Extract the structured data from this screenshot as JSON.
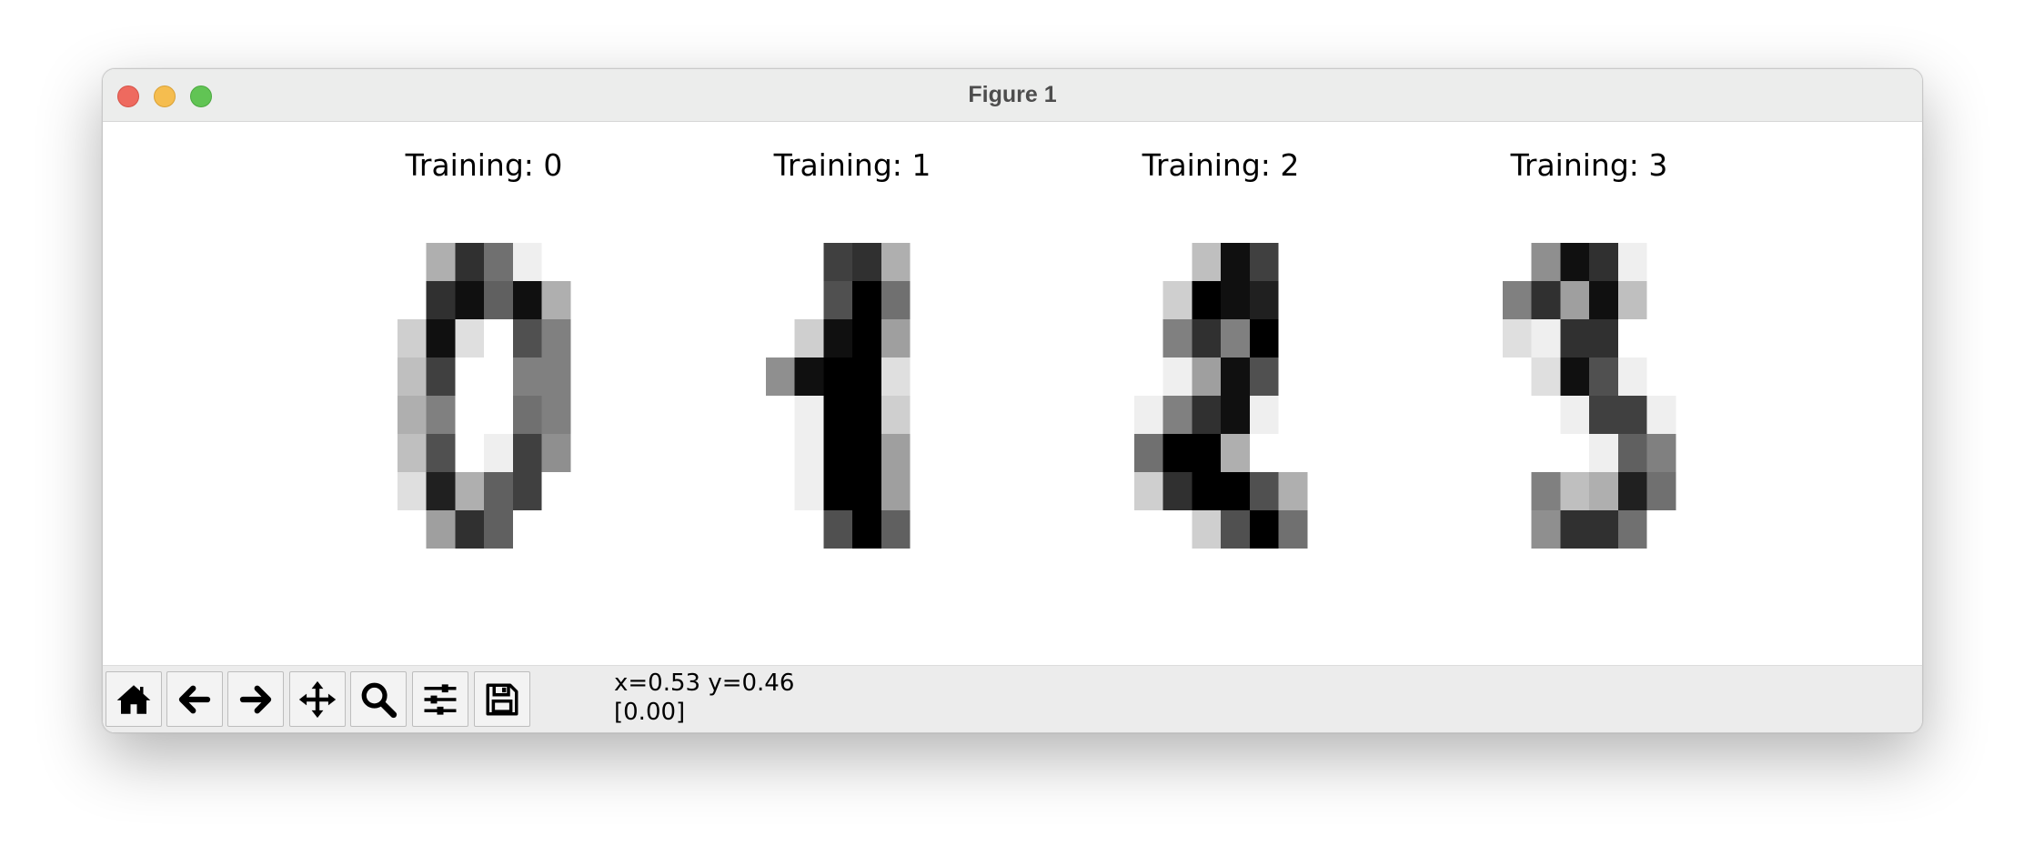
{
  "window": {
    "title": "Figure 1"
  },
  "toolbar": {
    "buttons": [
      {
        "name": "home-button",
        "icon": "home-icon"
      },
      {
        "name": "back-button",
        "icon": "arrow-left-icon"
      },
      {
        "name": "forward-button",
        "icon": "arrow-right-icon"
      },
      {
        "name": "pan-button",
        "icon": "move-icon"
      },
      {
        "name": "zoom-button",
        "icon": "magnifier-icon"
      },
      {
        "name": "configure-subplots-button",
        "icon": "sliders-icon"
      },
      {
        "name": "save-button",
        "icon": "floppy-disk-icon"
      }
    ],
    "coordinates": "x=0.53 y=0.46",
    "pixel_value": "[0.00]"
  },
  "figure": {
    "colormap": "gray_r",
    "value_range": [
      0,
      16
    ],
    "panels": [
      {
        "title": "Training: 0",
        "image": [
          [
            0,
            0,
            5,
            13,
            9,
            1,
            0,
            0
          ],
          [
            0,
            0,
            13,
            15,
            10,
            15,
            5,
            0
          ],
          [
            0,
            3,
            15,
            2,
            0,
            11,
            8,
            0
          ],
          [
            0,
            4,
            12,
            0,
            0,
            8,
            8,
            0
          ],
          [
            0,
            5,
            8,
            0,
            0,
            9,
            8,
            0
          ],
          [
            0,
            4,
            11,
            0,
            1,
            12,
            7,
            0
          ],
          [
            0,
            2,
            14,
            5,
            10,
            12,
            0,
            0
          ],
          [
            0,
            0,
            6,
            13,
            10,
            0,
            0,
            0
          ]
        ]
      },
      {
        "title": "Training: 1",
        "image": [
          [
            0,
            0,
            0,
            12,
            13,
            5,
            0,
            0
          ],
          [
            0,
            0,
            0,
            11,
            16,
            9,
            0,
            0
          ],
          [
            0,
            0,
            3,
            15,
            16,
            6,
            0,
            0
          ],
          [
            0,
            7,
            15,
            16,
            16,
            2,
            0,
            0
          ],
          [
            0,
            0,
            1,
            16,
            16,
            3,
            0,
            0
          ],
          [
            0,
            0,
            1,
            16,
            16,
            6,
            0,
            0
          ],
          [
            0,
            0,
            1,
            16,
            16,
            6,
            0,
            0
          ],
          [
            0,
            0,
            0,
            11,
            16,
            10,
            0,
            0
          ]
        ]
      },
      {
        "title": "Training: 2",
        "image": [
          [
            0,
            0,
            0,
            4,
            15,
            12,
            0,
            0
          ],
          [
            0,
            0,
            3,
            16,
            15,
            14,
            0,
            0
          ],
          [
            0,
            0,
            8,
            13,
            8,
            16,
            0,
            0
          ],
          [
            0,
            0,
            1,
            6,
            15,
            11,
            0,
            0
          ],
          [
            0,
            1,
            8,
            13,
            15,
            1,
            0,
            0
          ],
          [
            0,
            9,
            16,
            16,
            5,
            0,
            0,
            0
          ],
          [
            0,
            3,
            13,
            16,
            16,
            11,
            5,
            0
          ],
          [
            0,
            0,
            0,
            3,
            11,
            16,
            9,
            0
          ]
        ]
      },
      {
        "title": "Training: 3",
        "image": [
          [
            0,
            0,
            7,
            15,
            13,
            1,
            0,
            0
          ],
          [
            0,
            8,
            13,
            6,
            15,
            4,
            0,
            0
          ],
          [
            0,
            2,
            1,
            13,
            13,
            0,
            0,
            0
          ],
          [
            0,
            0,
            2,
            15,
            11,
            1,
            0,
            0
          ],
          [
            0,
            0,
            0,
            1,
            12,
            12,
            1,
            0
          ],
          [
            0,
            0,
            0,
            0,
            1,
            10,
            8,
            0
          ],
          [
            0,
            0,
            8,
            4,
            5,
            14,
            9,
            0
          ],
          [
            0,
            0,
            7,
            13,
            13,
            9,
            0,
            0
          ]
        ]
      }
    ]
  }
}
